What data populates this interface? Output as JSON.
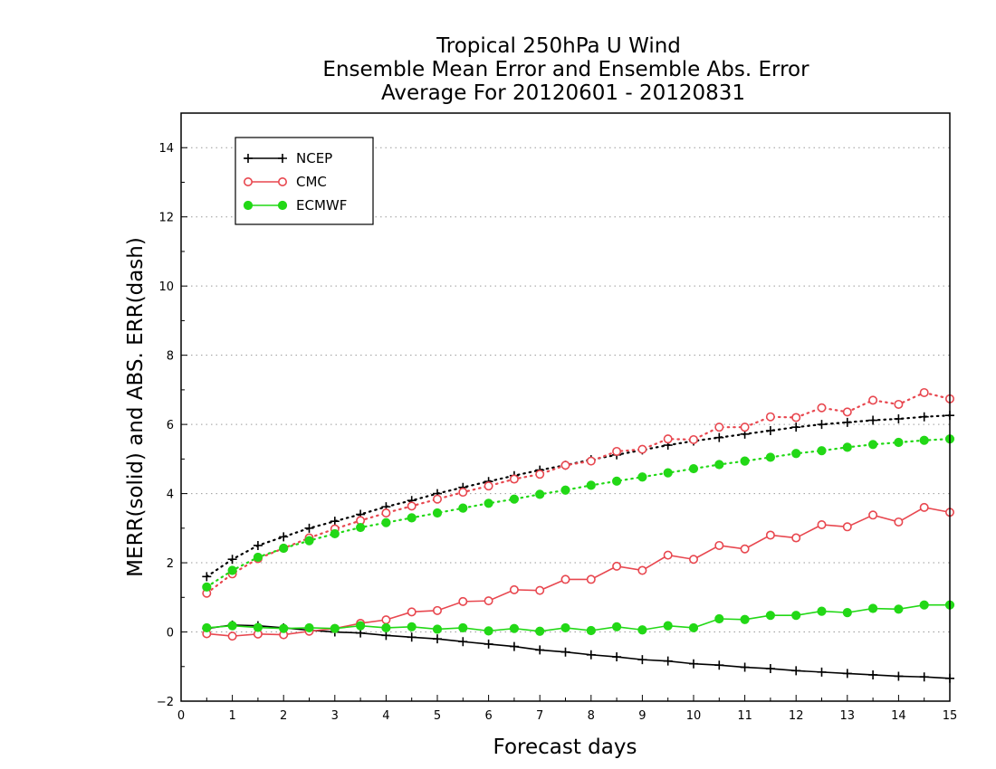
{
  "chart_data": {
    "type": "line",
    "title_lines": [
      "Tropical 250hPa U Wind",
      "Ensemble Mean Error and Ensemble Abs. Error",
      "Average For 20120601 - 20120831"
    ],
    "xlabel": "Forecast days",
    "ylabel": "MERR(solid) and ABS. ERR(dash)",
    "xlim": [
      0,
      15
    ],
    "ylim": [
      -2,
      15
    ],
    "x_ticks": [
      0,
      1,
      2,
      3,
      4,
      5,
      6,
      7,
      8,
      9,
      10,
      11,
      12,
      13,
      14,
      15
    ],
    "y_ticks": [
      -2,
      0,
      2,
      4,
      6,
      8,
      10,
      12,
      14
    ],
    "grid": "horizontal dotted",
    "legend_position": "top-left",
    "x": [
      0.5,
      1,
      1.5,
      2,
      2.5,
      3,
      3.5,
      4,
      4.5,
      5,
      5.5,
      6,
      6.5,
      7,
      7.5,
      8,
      8.5,
      9,
      9.5,
      10,
      10.5,
      11,
      11.5,
      12,
      12.5,
      13,
      13.5,
      14,
      14.5,
      15
    ],
    "series": [
      {
        "name": "NCEP",
        "color": "#000000",
        "marker": "plus",
        "mean_error": [
          0.1,
          0.2,
          0.18,
          0.12,
          0.05,
          0.0,
          -0.03,
          -0.1,
          -0.15,
          -0.2,
          -0.28,
          -0.35,
          -0.42,
          -0.52,
          -0.58,
          -0.66,
          -0.72,
          -0.8,
          -0.84,
          -0.92,
          -0.96,
          -1.02,
          -1.06,
          -1.12,
          -1.16,
          -1.2,
          -1.24,
          -1.28,
          -1.3,
          -1.34
        ],
        "abs_error": [
          1.6,
          2.1,
          2.5,
          2.75,
          3.0,
          3.2,
          3.4,
          3.62,
          3.8,
          4.0,
          4.18,
          4.35,
          4.52,
          4.68,
          4.82,
          4.98,
          5.12,
          5.26,
          5.4,
          5.52,
          5.62,
          5.72,
          5.82,
          5.92,
          6.0,
          6.06,
          6.12,
          6.16,
          6.22,
          6.26
        ]
      },
      {
        "name": "CMC",
        "color": "#e8474f",
        "marker": "circle",
        "mean_error": [
          -0.05,
          -0.12,
          -0.06,
          -0.08,
          0.02,
          0.1,
          0.25,
          0.35,
          0.58,
          0.62,
          0.88,
          0.9,
          1.22,
          1.2,
          1.52,
          1.52,
          1.9,
          1.78,
          2.22,
          2.1,
          2.5,
          2.4,
          2.8,
          2.72,
          3.1,
          3.04,
          3.38,
          3.18,
          3.6,
          3.46
        ],
        "abs_error": [
          1.12,
          1.68,
          2.12,
          2.42,
          2.72,
          2.98,
          3.22,
          3.44,
          3.64,
          3.84,
          4.04,
          4.22,
          4.42,
          4.56,
          4.82,
          4.94,
          5.22,
          5.28,
          5.58,
          5.56,
          5.92,
          5.92,
          6.22,
          6.2,
          6.48,
          6.36,
          6.7,
          6.58,
          6.92,
          6.74
        ]
      },
      {
        "name": "ECMWF",
        "color": "#22d816",
        "marker": "filled-circle",
        "mean_error": [
          0.12,
          0.18,
          0.13,
          0.1,
          0.12,
          0.1,
          0.18,
          0.12,
          0.15,
          0.08,
          0.12,
          0.03,
          0.1,
          0.02,
          0.12,
          0.04,
          0.15,
          0.06,
          0.18,
          0.12,
          0.38,
          0.36,
          0.48,
          0.48,
          0.6,
          0.56,
          0.68,
          0.66,
          0.78,
          0.78
        ],
        "abs_error": [
          1.3,
          1.78,
          2.16,
          2.42,
          2.64,
          2.84,
          3.02,
          3.16,
          3.3,
          3.44,
          3.58,
          3.72,
          3.84,
          3.98,
          4.1,
          4.24,
          4.36,
          4.48,
          4.6,
          4.72,
          4.84,
          4.94,
          5.05,
          5.16,
          5.24,
          5.34,
          5.42,
          5.48,
          5.54,
          5.58
        ]
      }
    ]
  }
}
